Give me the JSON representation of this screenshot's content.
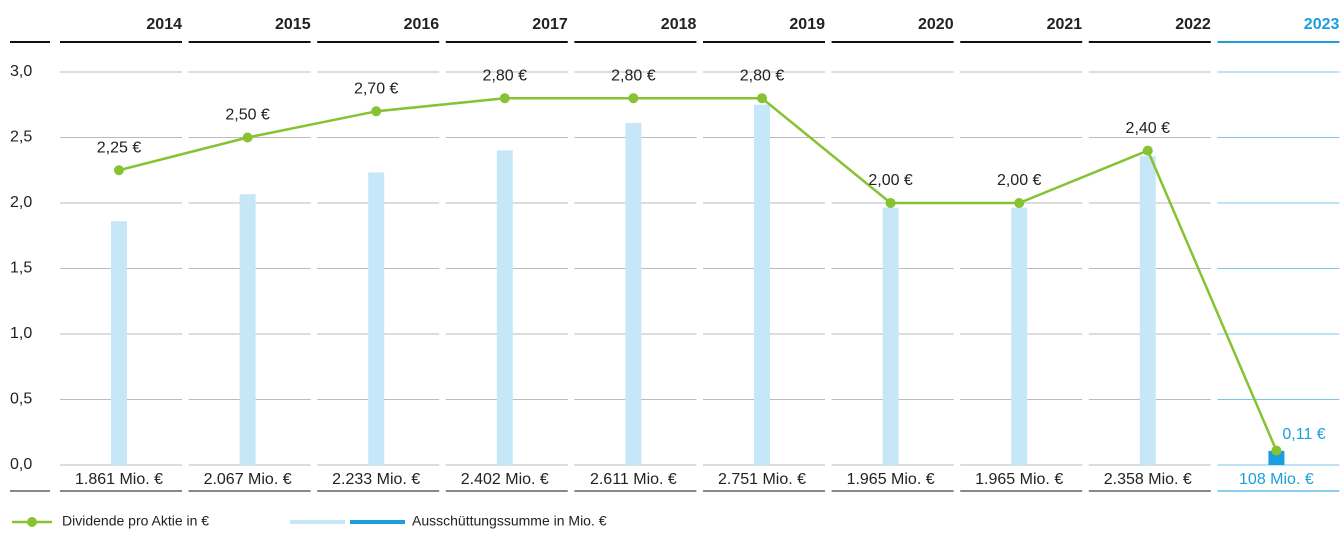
{
  "chart_data": {
    "type": "bar-line",
    "categories": [
      "2014",
      "2015",
      "2016",
      "2017",
      "2018",
      "2019",
      "2020",
      "2021",
      "2022",
      "2023"
    ],
    "ylim": [
      0,
      3
    ],
    "yticks": [
      {
        "value": 0,
        "label": "0,0"
      },
      {
        "value": 0.5,
        "label": "0,5"
      },
      {
        "value": 1,
        "label": "1,0"
      },
      {
        "value": 1.5,
        "label": "1,5"
      },
      {
        "value": 2,
        "label": "2,0"
      },
      {
        "value": 2.5,
        "label": "2,5"
      },
      {
        "value": 3,
        "label": "3,0"
      }
    ],
    "y2lim": [
      0,
      3000
    ],
    "highlight": {
      "category_index": 9,
      "color": "#1a9ee0"
    },
    "series": [
      {
        "name": "Dividende pro Aktie in €",
        "color": "#86c232",
        "type": "line",
        "values": [
          2.25,
          2.5,
          2.7,
          2.8,
          2.8,
          2.8,
          2.0,
          2.0,
          2.4,
          0.11
        ],
        "value_labels": [
          "2,25 €",
          "2,50 €",
          "2,70 €",
          "2,80 €",
          "2,80 €",
          "2,80 €",
          "2,00 €",
          "2,00 €",
          "2,40 €",
          "0,11 €"
        ]
      },
      {
        "name": "Ausschüttungssumme in Mio. €",
        "color": "#c6e7f8",
        "type": "bar",
        "axis": "y2",
        "values": [
          1861,
          2067,
          2233,
          2402,
          2611,
          2751,
          1965,
          1965,
          2358,
          108
        ],
        "value_labels": [
          "1.861 Mio. €",
          "2.067 Mio. €",
          "2.233 Mio. €",
          "2.402 Mio. €",
          "2.611 Mio. €",
          "2.751 Mio. €",
          "1.965 Mio. €",
          "1.965 Mio. €",
          "2.358 Mio. €",
          "108 Mio. €"
        ]
      }
    ]
  }
}
